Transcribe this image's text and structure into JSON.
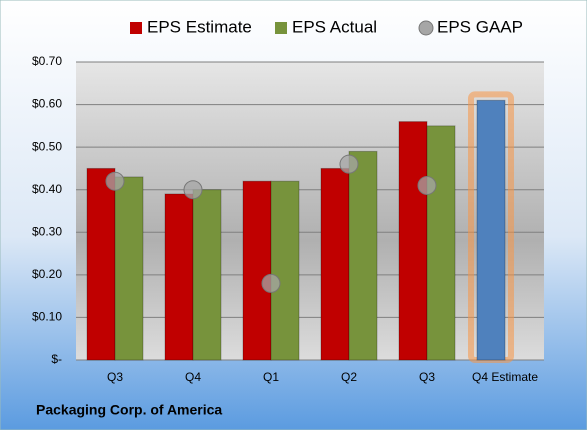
{
  "chart_data": {
    "type": "bar",
    "categories": [
      "Q3",
      "Q4",
      "Q1",
      "Q2",
      "Q3",
      "Q4 Estimate"
    ],
    "series": [
      {
        "name": "EPS Estimate",
        "color": "#c00000",
        "point_colors": [
          "#c00000",
          "#c00000",
          "#c00000",
          "#c00000",
          "#c00000",
          "#4f81bd"
        ],
        "values": [
          0.45,
          0.39,
          0.42,
          0.45,
          0.56,
          0.61
        ]
      },
      {
        "name": "EPS Actual",
        "color": "#77933c",
        "values": [
          0.43,
          0.4,
          0.42,
          0.49,
          0.55,
          null
        ]
      },
      {
        "name": "EPS GAAP",
        "color": "#a6a6a6",
        "type": "scatter",
        "values": [
          0.42,
          0.4,
          0.18,
          0.46,
          0.41,
          null
        ]
      }
    ],
    "ylim": [
      0,
      0.7
    ],
    "yticks": [
      {
        "value": 0,
        "label": "$-"
      },
      {
        "value": 0.1,
        "label": "$0.10"
      },
      {
        "value": 0.2,
        "label": "$0.20"
      },
      {
        "value": 0.3,
        "label": "$0.30"
      },
      {
        "value": 0.4,
        "label": "$0.40"
      },
      {
        "value": 0.5,
        "label": "$0.50"
      },
      {
        "value": 0.6,
        "label": "$0.60"
      },
      {
        "value": 0.7,
        "label": "$0.70"
      }
    ],
    "grid": true,
    "legend": "top",
    "footer": "Packaging Corp. of America"
  }
}
